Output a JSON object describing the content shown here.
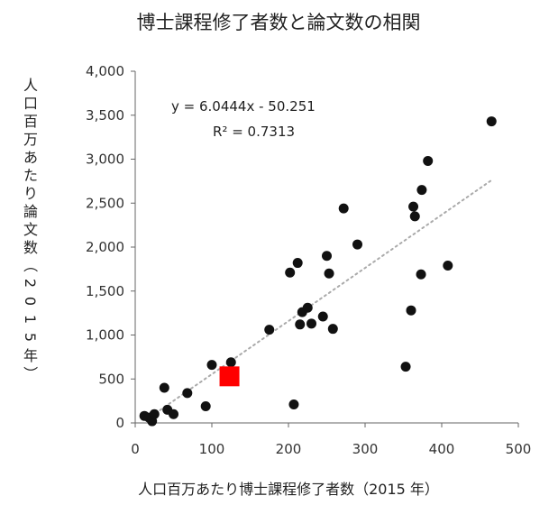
{
  "chart_data": {
    "type": "scatter",
    "title": "博士課程修了者数と論文数の相関",
    "xlabel": "人口百万あたり博士課程修了者数（2015 年）",
    "ylabel": "人口百万あたり論文数（2015年）",
    "xlim": [
      0,
      500
    ],
    "ylim": [
      0,
      4000
    ],
    "x_ticks": [
      0,
      100,
      200,
      300,
      400,
      500
    ],
    "y_ticks": [
      0,
      500,
      1000,
      1500,
      2000,
      2500,
      3000,
      3500,
      4000
    ],
    "x_tick_labels": [
      "0",
      "100",
      "200",
      "300",
      "400",
      "500"
    ],
    "y_tick_labels": [
      "0",
      "500",
      "1,000",
      "1,500",
      "2,000",
      "2,500",
      "3,000",
      "3,500",
      "4,000"
    ],
    "grid": false,
    "points": [
      {
        "x": 12,
        "y": 80
      },
      {
        "x": 18,
        "y": 60
      },
      {
        "x": 22,
        "y": 20
      },
      {
        "x": 25,
        "y": 100
      },
      {
        "x": 38,
        "y": 400
      },
      {
        "x": 42,
        "y": 150
      },
      {
        "x": 50,
        "y": 100
      },
      {
        "x": 68,
        "y": 340
      },
      {
        "x": 92,
        "y": 190
      },
      {
        "x": 100,
        "y": 660
      },
      {
        "x": 125,
        "y": 690
      },
      {
        "x": 175,
        "y": 1060
      },
      {
        "x": 202,
        "y": 1710
      },
      {
        "x": 207,
        "y": 210
      },
      {
        "x": 212,
        "y": 1820
      },
      {
        "x": 215,
        "y": 1120
      },
      {
        "x": 218,
        "y": 1260
      },
      {
        "x": 225,
        "y": 1310
      },
      {
        "x": 230,
        "y": 1130
      },
      {
        "x": 245,
        "y": 1210
      },
      {
        "x": 250,
        "y": 1900
      },
      {
        "x": 253,
        "y": 1700
      },
      {
        "x": 258,
        "y": 1070
      },
      {
        "x": 272,
        "y": 2440
      },
      {
        "x": 290,
        "y": 2030
      },
      {
        "x": 353,
        "y": 640
      },
      {
        "x": 360,
        "y": 1280
      },
      {
        "x": 363,
        "y": 2460
      },
      {
        "x": 365,
        "y": 2350
      },
      {
        "x": 373,
        "y": 1690
      },
      {
        "x": 374,
        "y": 2650
      },
      {
        "x": 382,
        "y": 2980
      },
      {
        "x": 408,
        "y": 1790
      },
      {
        "x": 465,
        "y": 3430
      }
    ],
    "highlight_point": {
      "x": 123,
      "y": 530,
      "color": "#ff0000",
      "shape": "square"
    },
    "trendline": {
      "slope": 6.0444,
      "intercept": -50.251,
      "x_range": [
        15,
        465
      ],
      "style": "dotted",
      "equation": "y = 6.0444x - 50.251",
      "r2": "R² = 0.7313"
    },
    "colors": {
      "points": "#111111",
      "trendline": "#aaaaaa",
      "axis": "#666666"
    }
  }
}
